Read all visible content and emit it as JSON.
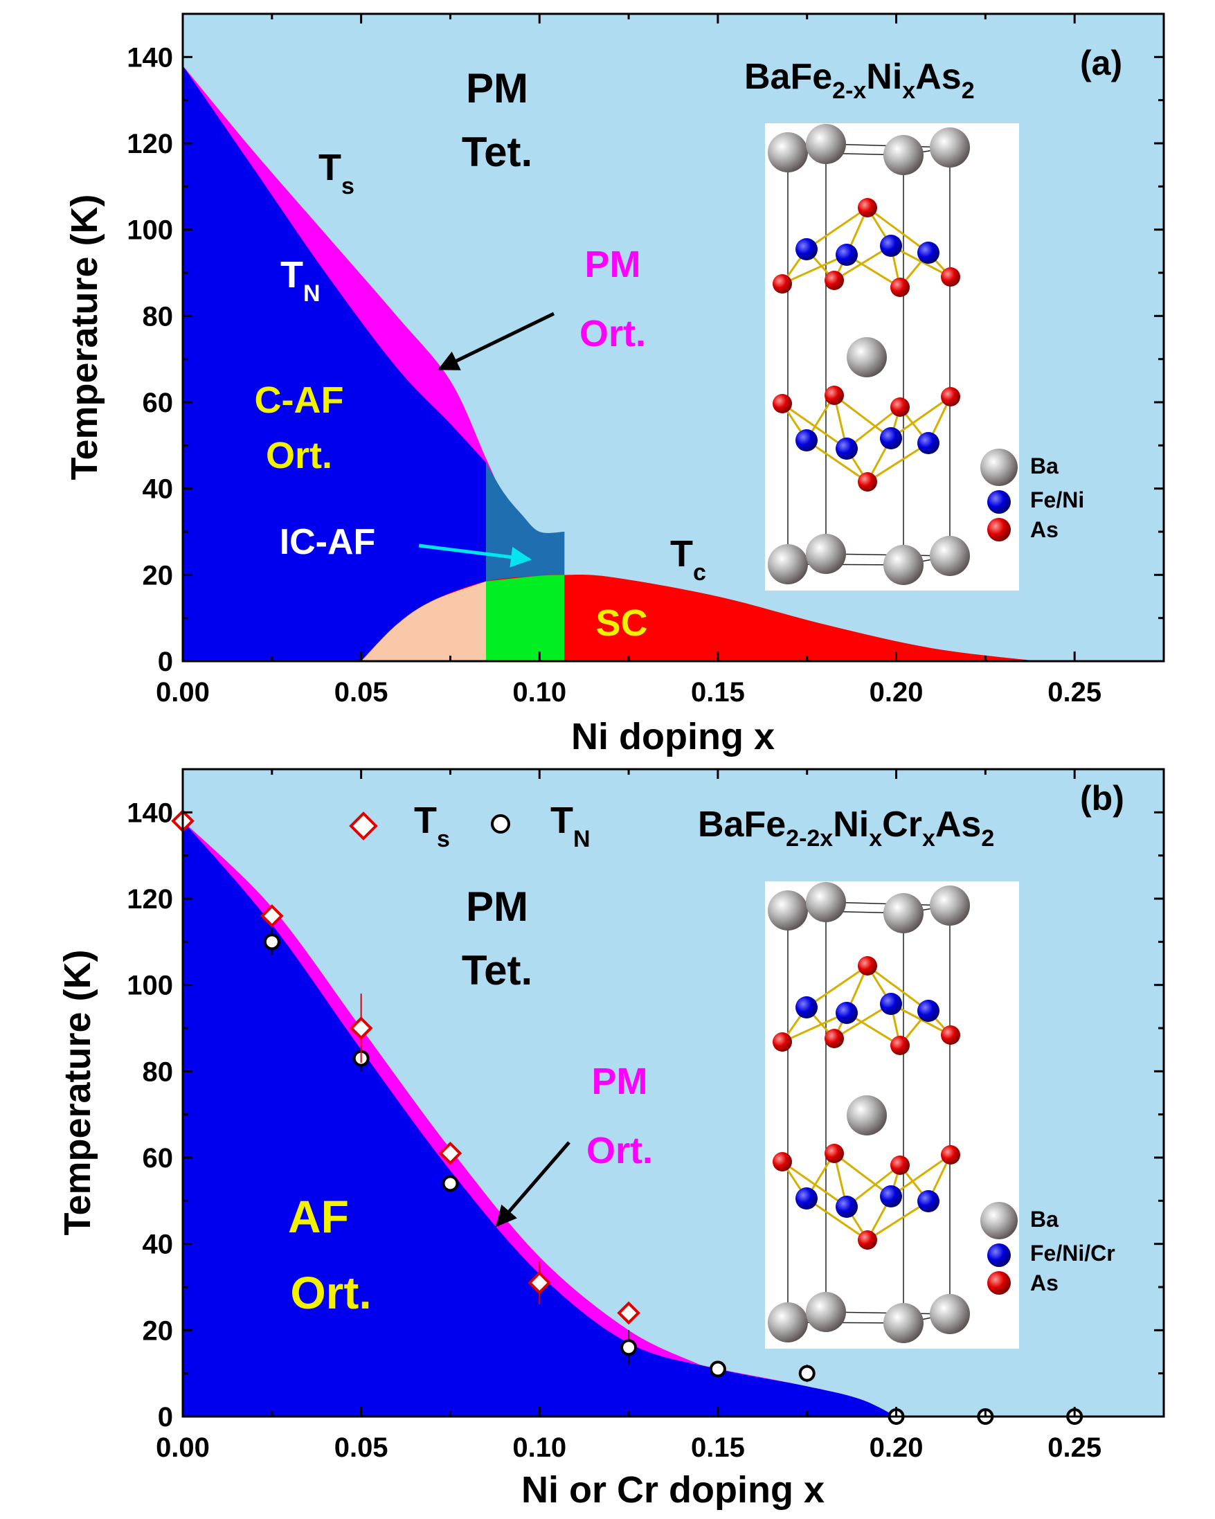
{
  "colors": {
    "tet": "#b0dcf2",
    "af": "#0000ee",
    "pm_ort": "#ff00ff",
    "sc": "#ff0000",
    "sc_left": "#f9c8a8",
    "green": "#00ee22",
    "icaf": "#1e6eb0",
    "yellow": "#f2f200",
    "cyan_arrow": "#00e5ee"
  },
  "chart_data": [
    {
      "panel": "a",
      "type": "area",
      "title": "BaFe2-xNixAs2",
      "title_parts": {
        "base": "BaFe",
        "sub1": "2-x",
        "mid": "Ni",
        "sub2": "x",
        "end": "As",
        "sub3": "2"
      },
      "panel_label": "(a)",
      "xlabel": "Ni doping x",
      "ylabel": "Temperature (K)",
      "xlim": [
        0,
        0.275
      ],
      "ylim": [
        0,
        150
      ],
      "xticks": [
        "0.00",
        "0.05",
        "0.10",
        "0.15",
        "0.20",
        "0.25"
      ],
      "yticks": [
        "0",
        "20",
        "40",
        "60",
        "80",
        "100",
        "120",
        "140"
      ],
      "series": [
        {
          "name": "Ts",
          "x": [
            0,
            0.02,
            0.04,
            0.06,
            0.075,
            0.085,
            0.09,
            0.095,
            0.1
          ],
          "values": [
            138,
            118,
            99,
            80,
            65,
            47,
            38,
            32,
            30
          ]
        },
        {
          "name": "TN",
          "x": [
            0,
            0.02,
            0.04,
            0.06,
            0.075,
            0.085,
            0.09,
            0.095,
            0.1,
            0.107
          ],
          "values": [
            138,
            114,
            90,
            68,
            55,
            46,
            39,
            34,
            30,
            30
          ]
        },
        {
          "name": "Tc",
          "x": [
            0.05,
            0.06,
            0.07,
            0.085,
            0.1,
            0.107,
            0.12,
            0.15,
            0.18,
            0.21,
            0.24
          ],
          "values": [
            0,
            8.5,
            14,
            18.5,
            19.8,
            20,
            19.5,
            15,
            8.5,
            3,
            0
          ]
        }
      ],
      "regions": {
        "ic_af": {
          "x_range": [
            0.085,
            0.107
          ],
          "t_max": 30
        },
        "green": {
          "x_range": [
            0.085,
            0.107
          ]
        }
      },
      "labels": {
        "pm_tet_1": "PM",
        "pm_tet_2": "Tet.",
        "ts_main": "T",
        "ts_sub": "s",
        "tn_main": "T",
        "tn_sub": "N",
        "pm_ort_1": "PM",
        "pm_ort_2": "Ort.",
        "caf_1": "C-AF",
        "caf_2": "Ort.",
        "icaf": "IC-AF",
        "tc_main": "T",
        "tc_sub": "c",
        "sc": "SC"
      },
      "legend": {
        "ba": "Ba",
        "fe": "Fe/Ni",
        "as": "As"
      }
    },
    {
      "panel": "b",
      "type": "scatter",
      "title": "BaFe2-2xNixCrxAs2",
      "title_parts": {
        "base": "BaFe",
        "sub1": "2-2x",
        "mid": "Ni",
        "sub2": "x",
        "mid2": "Cr",
        "sub3": "x",
        "end": "As",
        "sub4": "2"
      },
      "panel_label": "(b)",
      "xlabel": "Ni or Cr doping x",
      "ylabel": "Temperature (K)",
      "xlim": [
        0,
        0.275
      ],
      "ylim": [
        0,
        150
      ],
      "xticks": [
        "0.00",
        "0.05",
        "0.10",
        "0.15",
        "0.20",
        "0.25"
      ],
      "yticks": [
        "0",
        "20",
        "40",
        "60",
        "80",
        "100",
        "120",
        "140"
      ],
      "series": [
        {
          "name": "Ts",
          "marker": "diamond",
          "x": [
            0,
            0.025,
            0.05,
            0.075,
            0.1,
            0.125
          ],
          "values": [
            138,
            116,
            90,
            61,
            31,
            24
          ],
          "err": [
            0,
            0,
            8,
            0,
            5,
            0
          ]
        },
        {
          "name": "TN",
          "marker": "circle",
          "x": [
            0.025,
            0.05,
            0.075,
            0.1,
            0.125,
            0.15,
            0.175,
            0.2,
            0.225,
            0.25
          ],
          "values": [
            110,
            83,
            54,
            31,
            16,
            11,
            10,
            0,
            0,
            0
          ],
          "err": [
            3,
            3,
            0,
            4,
            4,
            0,
            2,
            0,
            0,
            0
          ]
        }
      ],
      "boundaries": {
        "ts_curve": {
          "x": [
            0,
            0.025,
            0.05,
            0.075,
            0.1,
            0.125,
            0.145
          ],
          "values": [
            138,
            118,
            90,
            62,
            37,
            20,
            12
          ]
        },
        "tn_curve": {
          "x": [
            0,
            0.025,
            0.05,
            0.075,
            0.1,
            0.125,
            0.15,
            0.175,
            0.19,
            0.2
          ],
          "values": [
            138,
            114,
            85,
            57,
            33,
            17,
            11,
            7,
            4,
            0
          ]
        }
      },
      "labels": {
        "pm_tet_1": "PM",
        "pm_tet_2": "Tet.",
        "pm_ort_1": "PM",
        "pm_ort_2": "Ort.",
        "af_1": "AF",
        "af_2": "Ort.",
        "leg_ts_main": "T",
        "leg_ts_sub": "s",
        "leg_tn_main": "T",
        "leg_tn_sub": "N"
      },
      "legend": {
        "ba": "Ba",
        "fe": "Fe/Ni/Cr",
        "as": "As"
      }
    }
  ]
}
